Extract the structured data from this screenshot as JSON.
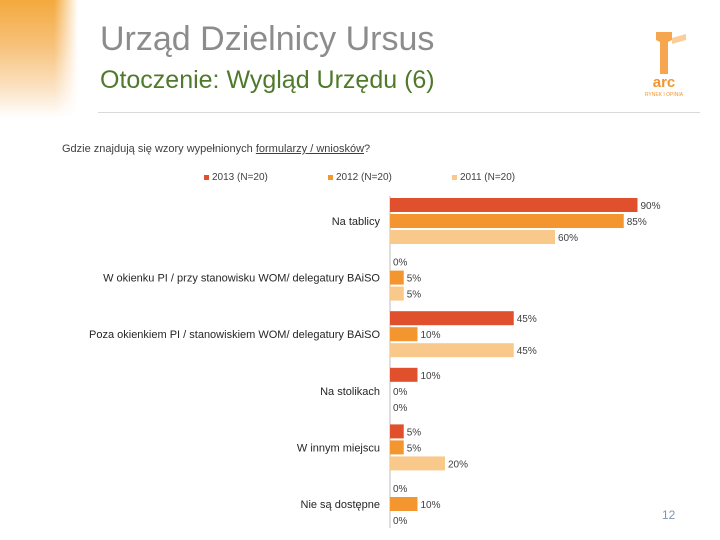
{
  "header": {
    "title": "Urząd Dzielnicy Ursus",
    "subtitle": "Otoczenie: Wygląd Urzędu (6)"
  },
  "logo": {
    "name": "arc-logo",
    "text": "arc",
    "tagline": "RYNEK I OPINIA"
  },
  "question": {
    "part1": "Gdzie znajdują się wzory wypełnionych ",
    "part2": "formularzy / wniosków",
    "part3": "?"
  },
  "colors": {
    "2013": "#e0502d",
    "2012": "#f4962f",
    "2011": "#f9c98c"
  },
  "chart_data": {
    "type": "bar",
    "orientation": "horizontal",
    "categories": [
      "Na tablicy",
      "W okienku PI / przy stanowisku WOM/ delegatury BAiSO",
      "Poza okienkiem PI / stanowiskiem WOM/ delegatury BAiSO",
      "Na stolikach",
      "W innym miejscu",
      "Nie są dostępne"
    ],
    "series": [
      {
        "name": "2013 (N=20)",
        "values": [
          90,
          0,
          45,
          10,
          5,
          0
        ],
        "labels": [
          "90%",
          "0%",
          "45%",
          "10%",
          "5%",
          "0%"
        ]
      },
      {
        "name": "2012 (N=20)",
        "values": [
          85,
          5,
          10,
          0,
          5,
          10
        ],
        "labels": [
          "85%",
          "5%",
          "10%",
          "0%",
          "5%",
          "10%"
        ]
      },
      {
        "name": "2011 (N=20)",
        "values": [
          60,
          5,
          45,
          0,
          20,
          0
        ],
        "labels": [
          "60%",
          "5%",
          "45%",
          "0%",
          "20%",
          "0%"
        ]
      }
    ],
    "xlim": [
      0,
      100
    ],
    "legend_position": "top",
    "grid": false
  },
  "page_number": "12"
}
